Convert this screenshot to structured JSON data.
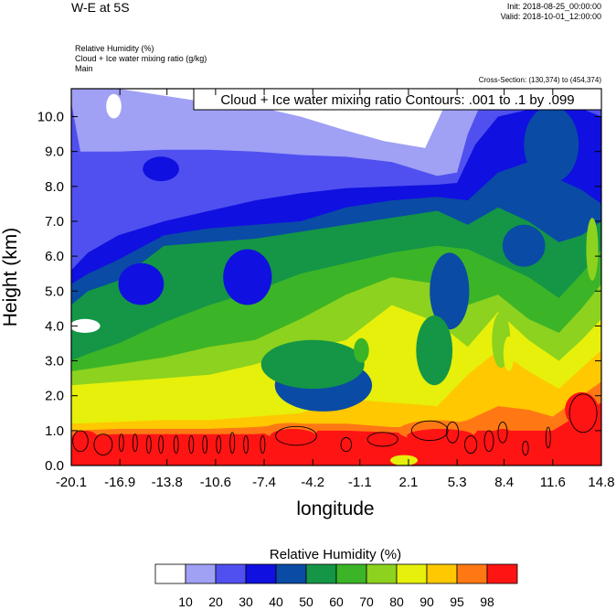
{
  "header": {
    "title": "W-E at 5S",
    "init": "Init: 2018-08-25_00:00:00",
    "valid": "Valid: 2018-10-01_12:00:00",
    "fields": [
      "Relative Humidity   (%)",
      "Cloud + Ice water mixing ratio   (g/kg)",
      "Main"
    ],
    "cross_section": "Cross-Section: (130,374) to (454,374)"
  },
  "chart_data": {
    "type": "heatmap",
    "contour_label": "Cloud + Ice water mixing ratio Contours: .001 to .1 by .099",
    "xlabel": "longitude",
    "ylabel": "Height (km)",
    "xlim": [
      -20.1,
      14.8
    ],
    "ylim": [
      0,
      10.8
    ],
    "x_ticks": [
      "-20.1",
      "-16.9",
      "-13.8",
      "-10.6",
      "-7.4",
      "-4.2",
      "-1.1",
      "2.1",
      "5.3",
      "8.4",
      "11.6",
      "14.8"
    ],
    "y_ticks": [
      "0.0",
      "1.0",
      "2.0",
      "3.0",
      "4.0",
      "5.0",
      "6.0",
      "7.0",
      "8.0",
      "9.0",
      "10.0"
    ],
    "colorbar": {
      "title": "Relative Humidity  (%)",
      "labels": [
        "10",
        "20",
        "30",
        "40",
        "50",
        "60",
        "70",
        "80",
        "90",
        "95",
        "98"
      ],
      "colors": [
        "#ffffff",
        "#a0a0f5",
        "#5050f0",
        "#1010e0",
        "#0a4ba5",
        "#149646",
        "#3cb428",
        "#8cd21e",
        "#e6f00a",
        "#ffc800",
        "#ff7814",
        "#ff1414"
      ]
    },
    "bands": [
      {
        "level": 1,
        "top": [
          [
            -20.1,
            10.8
          ],
          [
            -17.0,
            10.8
          ],
          [
            -14.0,
            10.6
          ],
          [
            -11.0,
            10.4
          ],
          [
            -8.0,
            10.3
          ],
          [
            -5.0,
            10.0
          ],
          [
            -2.0,
            9.6
          ],
          [
            0.5,
            9.3
          ],
          [
            3.2,
            9.1
          ],
          [
            5.0,
            10.8
          ],
          [
            14.8,
            10.8
          ]
        ]
      },
      {
        "level": 2,
        "top": [
          [
            -20.1,
            10.4
          ],
          [
            -19.5,
            9.0
          ],
          [
            -17.0,
            9.0
          ],
          [
            -14.0,
            9.05
          ],
          [
            -11.0,
            9.05
          ],
          [
            -8.0,
            9.0
          ],
          [
            -5.0,
            8.9
          ],
          [
            -2.0,
            8.85
          ],
          [
            1.0,
            8.7
          ],
          [
            4.0,
            8.3
          ],
          [
            5.3,
            8.4
          ],
          [
            6.0,
            9.5
          ],
          [
            7.0,
            10.5
          ],
          [
            8.0,
            10.8
          ],
          [
            14.8,
            10.8
          ]
        ]
      },
      {
        "level": 3,
        "top": [
          [
            -20.1,
            5.6
          ],
          [
            -19.0,
            6.1
          ],
          [
            -17.0,
            6.6
          ],
          [
            -14.0,
            7.0
          ],
          [
            -11.0,
            7.3
          ],
          [
            -8.0,
            7.6
          ],
          [
            -5.0,
            7.8
          ],
          [
            -2.0,
            7.95
          ],
          [
            1.0,
            8.0
          ],
          [
            4.0,
            8.05
          ],
          [
            5.3,
            8.1
          ],
          [
            6.5,
            9.2
          ],
          [
            8.0,
            10.0
          ],
          [
            10.0,
            10.2
          ],
          [
            12.5,
            10.4
          ],
          [
            14.8,
            10.0
          ]
        ]
      },
      {
        "level": 4,
        "top": [
          [
            -20.1,
            5.2
          ],
          [
            -19.0,
            5.5
          ],
          [
            -17.0,
            5.9
          ],
          [
            -14.0,
            6.6
          ],
          [
            -11.0,
            6.8
          ],
          [
            -8.0,
            6.9
          ],
          [
            -5.0,
            7.0
          ],
          [
            -2.0,
            7.4
          ],
          [
            1.0,
            7.6
          ],
          [
            4.0,
            7.7
          ],
          [
            6.0,
            7.6
          ],
          [
            8.0,
            8.4
          ],
          [
            10.0,
            8.7
          ],
          [
            12.0,
            8.2
          ],
          [
            13.5,
            7.9
          ],
          [
            14.8,
            7.5
          ]
        ]
      },
      {
        "level": 5,
        "top": [
          [
            -20.1,
            4.6
          ],
          [
            -19.0,
            5.0
          ],
          [
            -17.0,
            5.3
          ],
          [
            -14.0,
            6.3
          ],
          [
            -11.0,
            6.4
          ],
          [
            -8.0,
            6.5
          ],
          [
            -5.0,
            6.7
          ],
          [
            -2.0,
            6.9
          ],
          [
            1.0,
            7.1
          ],
          [
            4.0,
            7.3
          ],
          [
            6.0,
            6.9
          ],
          [
            8.0,
            7.4
          ],
          [
            10.0,
            7.0
          ],
          [
            12.0,
            6.4
          ],
          [
            13.5,
            6.6
          ],
          [
            14.8,
            7.0
          ]
        ]
      },
      {
        "level": 6,
        "top": [
          [
            -20.1,
            3.0
          ],
          [
            -19.0,
            3.2
          ],
          [
            -17.0,
            3.5
          ],
          [
            -14.0,
            4.1
          ],
          [
            -11.0,
            4.6
          ],
          [
            -8.0,
            5.0
          ],
          [
            -5.0,
            5.5
          ],
          [
            -2.0,
            5.8
          ],
          [
            1.0,
            6.1
          ],
          [
            4.0,
            6.3
          ],
          [
            6.0,
            6.2
          ],
          [
            8.0,
            5.8
          ],
          [
            10.0,
            5.4
          ],
          [
            12.0,
            4.8
          ],
          [
            13.5,
            5.5
          ],
          [
            14.8,
            6.2
          ]
        ]
      },
      {
        "level": 7,
        "top": [
          [
            -20.1,
            2.7
          ],
          [
            -17.0,
            2.9
          ],
          [
            -14.0,
            3.1
          ],
          [
            -11.0,
            3.4
          ],
          [
            -8.0,
            3.6
          ],
          [
            -5.0,
            4.2
          ],
          [
            -2.0,
            4.9
          ],
          [
            1.0,
            5.4
          ],
          [
            4.0,
            5.2
          ],
          [
            6.0,
            4.6
          ],
          [
            8.0,
            4.9
          ],
          [
            10.0,
            4.2
          ],
          [
            12.0,
            3.8
          ],
          [
            13.5,
            4.5
          ],
          [
            14.8,
            5.2
          ]
        ]
      },
      {
        "level": 8,
        "top": [
          [
            -20.1,
            2.3
          ],
          [
            -17.0,
            2.4
          ],
          [
            -14.0,
            2.5
          ],
          [
            -11.0,
            2.6
          ],
          [
            -8.0,
            2.9
          ],
          [
            -5.0,
            3.3
          ],
          [
            -2.0,
            3.6
          ],
          [
            1.0,
            4.6
          ],
          [
            4.0,
            4.1
          ],
          [
            6.0,
            3.4
          ],
          [
            8.0,
            4.4
          ],
          [
            10.0,
            3.6
          ],
          [
            12.0,
            3.0
          ],
          [
            13.5,
            3.6
          ],
          [
            14.8,
            4.2
          ]
        ]
      },
      {
        "level": 9,
        "top": [
          [
            -20.1,
            1.2
          ],
          [
            -17.0,
            1.25
          ],
          [
            -14.0,
            1.3
          ],
          [
            -11.0,
            1.3
          ],
          [
            -8.0,
            1.4
          ],
          [
            -5.0,
            1.5
          ],
          [
            -2.0,
            1.9
          ],
          [
            1.0,
            1.8
          ],
          [
            4.0,
            1.7
          ],
          [
            6.0,
            2.6
          ],
          [
            8.0,
            3.3
          ],
          [
            10.0,
            2.7
          ],
          [
            12.0,
            2.2
          ],
          [
            13.5,
            2.8
          ],
          [
            14.8,
            3.3
          ]
        ]
      },
      {
        "level": 10,
        "top": [
          [
            -20.1,
            1.0
          ],
          [
            -17.0,
            1.05
          ],
          [
            -14.0,
            1.05
          ],
          [
            -11.0,
            1.05
          ],
          [
            -8.0,
            1.1
          ],
          [
            -5.0,
            1.2
          ],
          [
            -2.0,
            1.2
          ],
          [
            1.0,
            1.1
          ],
          [
            4.0,
            1.1
          ],
          [
            6.0,
            1.3
          ],
          [
            8.0,
            1.7
          ],
          [
            10.0,
            1.6
          ],
          [
            11.6,
            1.4
          ],
          [
            13.5,
            2.0
          ],
          [
            14.8,
            2.4
          ]
        ]
      },
      {
        "level": 11,
        "top": [
          [
            -20.1,
            0.85
          ],
          [
            -17.0,
            0.9
          ],
          [
            -14.0,
            0.9
          ],
          [
            -11.0,
            0.9
          ],
          [
            -8.0,
            0.9
          ],
          [
            -5.0,
            1.0
          ],
          [
            -2.0,
            1.0
          ],
          [
            1.0,
            0.95
          ],
          [
            4.0,
            0.9
          ],
          [
            6.0,
            1.0
          ],
          [
            8.0,
            1.0
          ],
          [
            10.0,
            1.0
          ],
          [
            11.6,
            1.0
          ],
          [
            13.5,
            1.5
          ],
          [
            14.8,
            1.8
          ]
        ]
      }
    ],
    "blobs": [
      {
        "level": 0,
        "cx": -17.3,
        "cy": 10.3,
        "rx": 0.5,
        "ry": 0.35
      },
      {
        "level": 0,
        "cx": -19.2,
        "cy": 4.0,
        "rx": 1.0,
        "ry": 0.2
      },
      {
        "level": 3,
        "cx": -14.2,
        "cy": 8.5,
        "rx": 1.2,
        "ry": 0.35
      },
      {
        "level": 3,
        "cx": -15.5,
        "cy": 5.2,
        "rx": 1.5,
        "ry": 0.6
      },
      {
        "level": 3,
        "cx": -8.5,
        "cy": 5.4,
        "rx": 1.6,
        "ry": 0.8
      },
      {
        "level": 4,
        "cx": -3.5,
        "cy": 2.3,
        "rx": 3.2,
        "ry": 0.75
      },
      {
        "level": 4,
        "cx": 4.8,
        "cy": 5.0,
        "rx": 1.3,
        "ry": 1.1
      },
      {
        "level": 4,
        "cx": 11.5,
        "cy": 9.2,
        "rx": 1.8,
        "ry": 1.1
      },
      {
        "level": 4,
        "cx": 9.7,
        "cy": 6.3,
        "rx": 1.4,
        "ry": 0.6
      },
      {
        "level": 5,
        "cx": -4.2,
        "cy": 2.9,
        "rx": 3.4,
        "ry": 0.7
      },
      {
        "level": 5,
        "cx": 3.8,
        "cy": 3.3,
        "rx": 1.2,
        "ry": 1.0
      },
      {
        "level": 6,
        "cx": -1.0,
        "cy": 3.3,
        "rx": 0.5,
        "ry": 0.35
      },
      {
        "level": 6,
        "cx": -3.5,
        "cy": 4.9,
        "rx": 1.0,
        "ry": 0.25
      },
      {
        "level": 7,
        "cx": 8.2,
        "cy": 3.6,
        "rx": 0.6,
        "ry": 0.8
      },
      {
        "level": 7,
        "cx": 14.2,
        "cy": 6.2,
        "rx": 0.4,
        "ry": 0.9
      },
      {
        "level": 8,
        "cx": 8.7,
        "cy": 3.2,
        "rx": 0.35,
        "ry": 0.5
      },
      {
        "level": 10,
        "cx": 4.0,
        "cy": 1.0,
        "rx": 2.6,
        "ry": 0.3
      },
      {
        "level": 10,
        "cx": -5.7,
        "cy": 1.0,
        "rx": 1.8,
        "ry": 0.22
      },
      {
        "level": 11,
        "cx": -5.5,
        "cy": 0.85,
        "rx": 1.5,
        "ry": 0.2
      },
      {
        "level": 11,
        "cx": 4.2,
        "cy": 0.85,
        "rx": 2.2,
        "ry": 0.2
      },
      {
        "level": 11,
        "cx": -19.2,
        "cy": 0.75,
        "rx": 0.9,
        "ry": 0.25
      },
      {
        "level": 11,
        "cx": 8.3,
        "cy": 0.8,
        "rx": 0.8,
        "ry": 0.25
      },
      {
        "level": 11,
        "cx": 13.5,
        "cy": 1.6,
        "rx": 1.1,
        "ry": 0.5
      },
      {
        "level": 8,
        "cx": 1.8,
        "cy": 0.15,
        "rx": 0.9,
        "ry": 0.15
      }
    ],
    "contours": [
      {
        "cx": -19.5,
        "cy": 0.7,
        "rx": 0.5,
        "ry": 0.3
      },
      {
        "cx": -18.0,
        "cy": 0.6,
        "rx": 0.6,
        "ry": 0.3
      },
      {
        "cx": -16.8,
        "cy": 0.65,
        "rx": 0.15,
        "ry": 0.25
      },
      {
        "cx": -15.9,
        "cy": 0.65,
        "rx": 0.15,
        "ry": 0.25
      },
      {
        "cx": -15.0,
        "cy": 0.6,
        "rx": 0.15,
        "ry": 0.25
      },
      {
        "cx": -14.2,
        "cy": 0.6,
        "rx": 0.15,
        "ry": 0.25
      },
      {
        "cx": -13.2,
        "cy": 0.6,
        "rx": 0.15,
        "ry": 0.25
      },
      {
        "cx": -12.2,
        "cy": 0.6,
        "rx": 0.15,
        "ry": 0.25
      },
      {
        "cx": -11.3,
        "cy": 0.6,
        "rx": 0.15,
        "ry": 0.25
      },
      {
        "cx": -10.4,
        "cy": 0.6,
        "rx": 0.15,
        "ry": 0.25
      },
      {
        "cx": -9.5,
        "cy": 0.65,
        "rx": 0.15,
        "ry": 0.3
      },
      {
        "cx": -8.6,
        "cy": 0.6,
        "rx": 0.15,
        "ry": 0.25
      },
      {
        "cx": -7.5,
        "cy": 0.6,
        "rx": 0.15,
        "ry": 0.25
      },
      {
        "cx": -5.3,
        "cy": 0.85,
        "rx": 1.35,
        "ry": 0.27
      },
      {
        "cx": -2.0,
        "cy": 0.6,
        "rx": 0.35,
        "ry": 0.2
      },
      {
        "cx": 0.4,
        "cy": 0.75,
        "rx": 1.0,
        "ry": 0.2
      },
      {
        "cx": 3.5,
        "cy": 1.0,
        "rx": 1.2,
        "ry": 0.28
      },
      {
        "cx": 5.0,
        "cy": 0.95,
        "rx": 0.4,
        "ry": 0.3
      },
      {
        "cx": 6.2,
        "cy": 0.6,
        "rx": 0.4,
        "ry": 0.25
      },
      {
        "cx": 7.4,
        "cy": 0.7,
        "rx": 0.3,
        "ry": 0.3
      },
      {
        "cx": 8.3,
        "cy": 0.95,
        "rx": 0.3,
        "ry": 0.3
      },
      {
        "cx": 9.8,
        "cy": 0.5,
        "rx": 0.2,
        "ry": 0.2
      },
      {
        "cx": 11.3,
        "cy": 0.8,
        "rx": 0.15,
        "ry": 0.3
      },
      {
        "cx": 13.6,
        "cy": 1.5,
        "rx": 0.9,
        "ry": 0.55
      }
    ]
  }
}
